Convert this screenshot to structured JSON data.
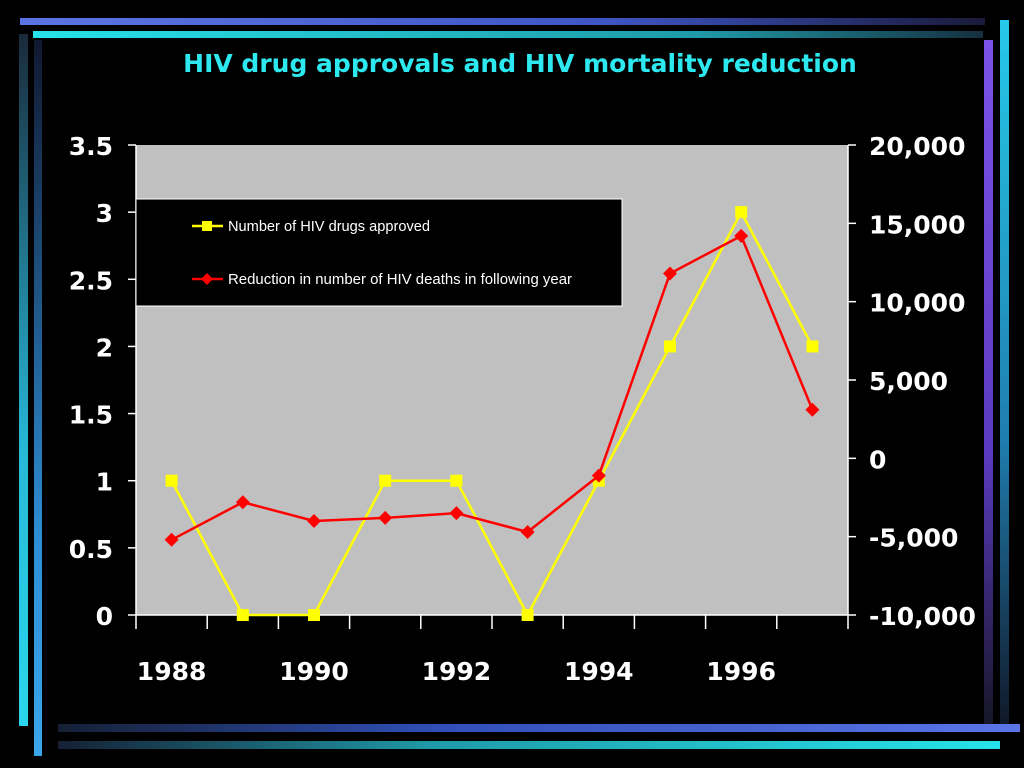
{
  "slide": {
    "title": "HIV drug approvals and HIV mortality reduction"
  },
  "colors": {
    "background": "#000000",
    "plot_area": "#c0c0c0",
    "title": "#2ee8f0",
    "series_drugs": "#ffff00",
    "series_deaths": "#ff0000"
  },
  "chart_data": {
    "type": "line",
    "title": "HIV drug approvals and HIV mortality reduction",
    "x": [
      1988,
      1989,
      1990,
      1991,
      1992,
      1993,
      1994,
      1995,
      1996,
      1997
    ],
    "x_tick_labels": [
      "1988",
      "1990",
      "1992",
      "1994",
      "1996"
    ],
    "y_left": {
      "ylim": [
        0,
        3.5
      ],
      "tick_labels": [
        "0",
        "0.5",
        "1",
        "1.5",
        "2",
        "2.5",
        "3",
        "3.5"
      ]
    },
    "y_right": {
      "ylim": [
        -10000,
        20000
      ],
      "tick_labels": [
        "-10,000",
        "-5,000",
        "0",
        "5,000",
        "10,000",
        "15,000",
        "20,000"
      ]
    },
    "series": [
      {
        "name": "Number of HIV drugs approved",
        "axis": "left",
        "marker": "square",
        "color": "#ffff00",
        "values": [
          1,
          0,
          0,
          1,
          1,
          0,
          1,
          2,
          3,
          2
        ]
      },
      {
        "name": "Reduction in number of HIV deaths in following year",
        "axis": "right",
        "marker": "diamond",
        "color": "#ff0000",
        "values": [
          -5200,
          -2800,
          -4000,
          -3800,
          -3500,
          -4700,
          -1100,
          11800,
          14200,
          3100
        ]
      }
    ],
    "grid": false,
    "legend_position": "top-left inside plot"
  }
}
